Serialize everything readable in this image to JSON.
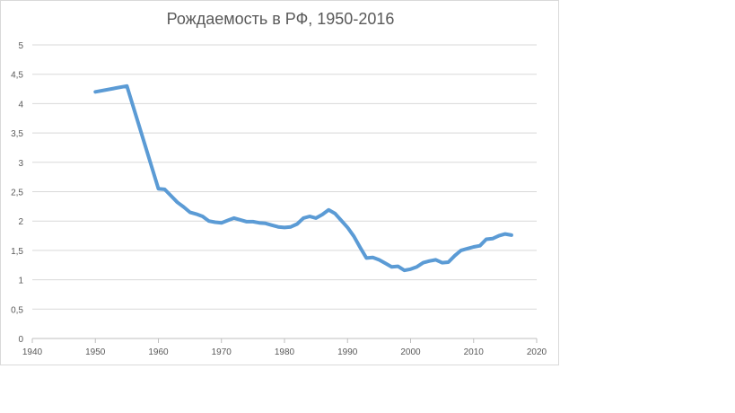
{
  "chart_data": {
    "type": "line",
    "title": "Рождаемость в РФ, 1950-2016",
    "xlabel": "",
    "ylabel": "",
    "xlim": [
      1940,
      2020
    ],
    "ylim": [
      0,
      5
    ],
    "x_ticks": [
      1940,
      1950,
      1960,
      1970,
      1980,
      1990,
      2000,
      2010,
      2020
    ],
    "y_ticks": [
      "0",
      "0,5",
      "1",
      "1,5",
      "2",
      "2,5",
      "3",
      "3,5",
      "4",
      "4,5",
      "5"
    ],
    "y_tick_values": [
      0,
      0.5,
      1,
      1.5,
      2,
      2.5,
      3,
      3.5,
      4,
      4.5,
      5
    ],
    "grid": true,
    "line_color": "#5b9bd5",
    "series": [
      {
        "x": [
          1950,
          1955,
          1960,
          1961,
          1962,
          1963,
          1964,
          1965,
          1966,
          1967,
          1968,
          1969,
          1970,
          1971,
          1972,
          1973,
          1974,
          1975,
          1976,
          1977,
          1978,
          1979,
          1980,
          1981,
          1982,
          1983,
          1984,
          1985,
          1986,
          1987,
          1988,
          1989,
          1990,
          1991,
          1992,
          1993,
          1994,
          1995,
          1996,
          1997,
          1998,
          1999,
          2000,
          2001,
          2002,
          2003,
          2004,
          2005,
          2006,
          2007,
          2008,
          2009,
          2010,
          2011,
          2012,
          2013,
          2014,
          2015,
          2016
        ],
        "values": [
          4.2,
          4.3,
          2.55,
          2.54,
          2.43,
          2.32,
          2.24,
          2.15,
          2.12,
          2.08,
          2.0,
          1.98,
          1.97,
          2.01,
          2.05,
          2.02,
          1.99,
          1.99,
          1.97,
          1.96,
          1.93,
          1.9,
          1.89,
          1.9,
          1.95,
          2.05,
          2.08,
          2.05,
          2.11,
          2.19,
          2.13,
          2.01,
          1.89,
          1.74,
          1.55,
          1.37,
          1.38,
          1.34,
          1.28,
          1.22,
          1.23,
          1.16,
          1.18,
          1.22,
          1.29,
          1.32,
          1.34,
          1.29,
          1.3,
          1.41,
          1.5,
          1.53,
          1.56,
          1.58,
          1.69,
          1.7,
          1.75,
          1.78,
          1.76
        ]
      }
    ]
  }
}
